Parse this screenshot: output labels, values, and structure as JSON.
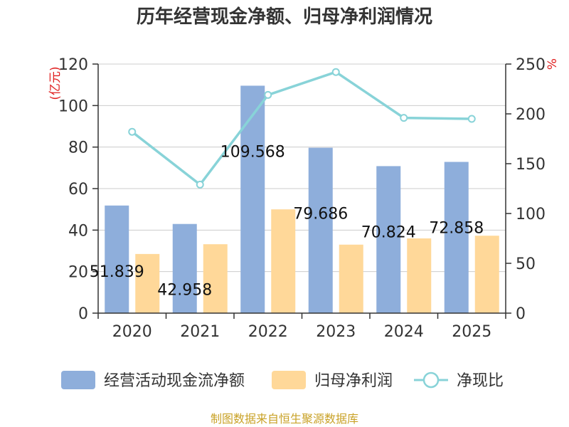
{
  "title": "历年经营现金净额、归母净利润情况",
  "source": "制图数据来自恒生聚源数据库",
  "chart_data": {
    "type": "bar",
    "categories": [
      "2020",
      "2021",
      "2022",
      "2023",
      "2024",
      "2025"
    ],
    "series": [
      {
        "name": "经营活动现金流净额",
        "type": "bar",
        "axis": "left",
        "color": "#8eaedb",
        "values": [
          51.839,
          42.958,
          109.568,
          79.686,
          70.824,
          72.858
        ],
        "labels": [
          "51.839",
          "42.958",
          "109.568",
          "79.686",
          "70.824",
          "72.858"
        ]
      },
      {
        "name": "归母净利润",
        "type": "bar",
        "axis": "left",
        "color": "#ffd899",
        "values": [
          28.5,
          33.2,
          50.0,
          33.0,
          36.0,
          37.3
        ]
      },
      {
        "name": "净现比",
        "type": "line",
        "axis": "right",
        "color": "#88d3d8",
        "values": [
          182,
          129,
          219,
          242,
          196,
          195
        ]
      }
    ],
    "left_axis": {
      "unit": "(亿元)",
      "min": 0,
      "max": 120,
      "ticks": [
        0,
        20,
        40,
        60,
        80,
        100,
        120
      ]
    },
    "right_axis": {
      "unit": "%",
      "min": 0,
      "max": 250,
      "ticks": [
        0,
        50,
        100,
        150,
        200,
        250
      ]
    },
    "grid": true,
    "legend_position": "bottom"
  }
}
